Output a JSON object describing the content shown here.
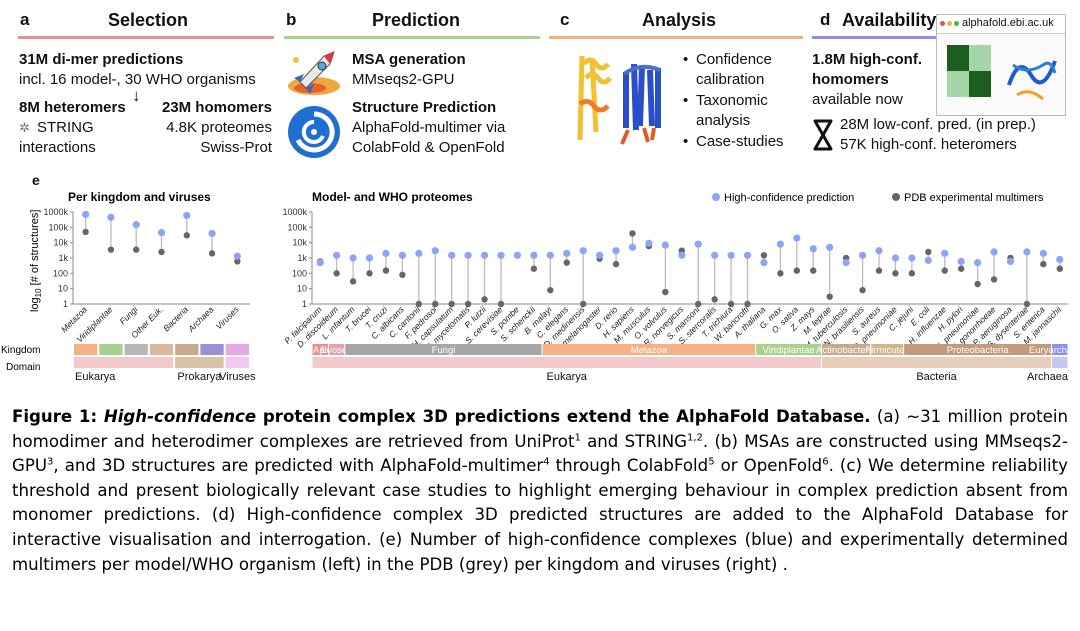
{
  "colors": {
    "selection": "#ec8f95",
    "prediction": "#a9d18e",
    "analysis": "#f4b183",
    "availability": "#8e8ef0",
    "high_conf": "#8ea3f5",
    "pdb": "#666666",
    "stem": "#bdbdbd"
  },
  "panels": {
    "a": {
      "letter": "a",
      "title": "Selection",
      "line1": "31M di-mer predictions",
      "line2": "incl. 16 model-, 30 WHO organisms",
      "hetero_title": "8M heteromers",
      "hetero_sub1": "STRING",
      "hetero_sub2": "interactions",
      "homo_title": "23M homomers",
      "homo_sub1": "4.8K proteomes",
      "homo_sub2": "Swiss-Prot",
      "arrow": "↓"
    },
    "b": {
      "letter": "b",
      "title": "Prediction",
      "msa_title": "MSA generation",
      "msa_sub": "MMseqs2-GPU",
      "sp_title": "Structure Prediction",
      "sp_sub1": "AlphaFold-multimer via",
      "sp_sub2": "ColabFold & OpenFold"
    },
    "c": {
      "letter": "c",
      "title": "Analysis",
      "bullets": [
        "Confidence",
        "calibration",
        "Taxonomic",
        "analysis",
        "Case-studies"
      ]
    },
    "d": {
      "letter": "d",
      "title": "Availability",
      "line1": "1.8M high-conf.",
      "line2": "homomers",
      "line3": "available now",
      "low": "28M low-conf. pred. (in prep.)",
      "hetero": "57K high-conf. heteromers",
      "url": "alphafold.ebi.ac.uk"
    }
  },
  "panel_e": {
    "letter": "e",
    "left_title": "Per kingdom and viruses",
    "right_title": "Model- and WHO proteomes",
    "legend_high": "High-confidence prediction",
    "legend_pdb": "PDB experimental multimers",
    "row_kingdom": "Kingdom",
    "row_domain": "Domain"
  },
  "chart_data": [
    {
      "type": "scatter",
      "title": "Per kingdom and viruses",
      "ylabel": "log10 [# of structures]",
      "yscale": "log",
      "ylim": [
        1,
        1000000
      ],
      "yticks": [
        "1",
        "10",
        "100",
        "1k",
        "10k",
        "100k",
        "1000k"
      ],
      "categories": [
        "Metazoa",
        "Viridiplantae",
        "Fungi",
        "Other Euk.",
        "Bacteria",
        "Archaea",
        "Viruses"
      ],
      "series": [
        {
          "name": "High-confidence prediction",
          "values": [
            700000,
            450000,
            150000,
            45000,
            600000,
            40000,
            1300
          ]
        },
        {
          "name": "PDB experimental multimers",
          "values": [
            50000,
            3500,
            3500,
            2500,
            30000,
            2000,
            600
          ]
        }
      ],
      "domains": [
        {
          "name": "Eukarya",
          "span": 4
        },
        {
          "name": "Prokarya",
          "span": 2
        },
        {
          "name": "Viruses",
          "span": 1
        }
      ]
    },
    {
      "type": "scatter",
      "title": "Model- and WHO proteomes",
      "yscale": "log",
      "ylim": [
        1,
        1000000
      ],
      "yticks": [
        "1",
        "10",
        "100",
        "1k",
        "10k",
        "100k",
        "1000k"
      ],
      "categories": [
        "P. falciparum",
        "D. discoideum",
        "L. infantum",
        "T. brucei",
        "T. cruzi",
        "C. albicans",
        "C. cantonii",
        "F. pedrosoi",
        "H. capsulatum",
        "M. mycetomatis",
        "P. lutzii",
        "S. cerevisiae",
        "S. pombe",
        "S. schenckii",
        "B. malayi",
        "C. elegans",
        "D. medinensis",
        "D. melanogaster",
        "D. rerio",
        "H. sapiens",
        "M. musculus",
        "O. volvulus",
        "R. norvegicus",
        "S. mansoni",
        "S. stercoralis",
        "T. trichiura",
        "W. bancrofti",
        "A. thaliana",
        "G. max",
        "O. sativa",
        "Z. mays",
        "M. leprae",
        "M. tuberculosis",
        "N. brasiliensis",
        "S. aureus",
        "S. pneumoniae",
        "C. jejuni",
        "E. coli",
        "H. influenzae",
        "H. pylori",
        "K. pneumoniae",
        "N. gonorrhoeae",
        "P. aeruginosa",
        "S. dysenteriae",
        "S. enterica",
        "M. jannaschii"
      ],
      "series": [
        {
          "name": "High-confidence prediction",
          "values": [
            500,
            1500,
            1000,
            1000,
            2000,
            1500,
            2000,
            3000,
            1500,
            1500,
            1500,
            1500,
            1500,
            1500,
            1500,
            2000,
            3000,
            1500,
            3000,
            5000,
            9000,
            7000,
            1500,
            8000,
            1500,
            1500,
            1500,
            500,
            8000,
            20000,
            4000,
            5000,
            500,
            1500,
            3000,
            1000,
            1000,
            700,
            2000,
            600,
            500,
            2500,
            600,
            2500,
            2000,
            800
          ]
        },
        {
          "name": "PDB experimental multimers",
          "values": [
            600,
            100,
            30,
            100,
            150,
            80,
            1,
            1,
            1,
            1,
            2,
            1,
            1500,
            200,
            8,
            500,
            1,
            900,
            400,
            40000,
            6000,
            6,
            3000,
            1,
            2,
            1,
            1,
            1500,
            100,
            150,
            150,
            3,
            1000,
            8,
            150,
            100,
            100,
            2500,
            150,
            200,
            20,
            40,
            1000,
            1,
            400,
            200
          ]
        }
      ],
      "kingdoms": [
        "Apicomplexa",
        "Evosea",
        "Fungi",
        "Metazoa",
        "Viridiplantae",
        "Actinobacteria",
        "Firmicutes",
        "Proteobacteria",
        "Euryarchaeota"
      ],
      "domains": [
        "Eukarya",
        "Bacteria",
        "Archaea"
      ]
    }
  ],
  "caption": {
    "fig_label": "Figure 1:",
    "fig_title_em": "High-confidence",
    "fig_title_rest": "protein complex 3D predictions extend the AlphaFold Database.",
    "t1": "(a) ~31 million protein homodimer and heterodimer complexes are retrieved from UniProt",
    "sup1": "1",
    "t2": "and STRING",
    "sup2": "1,2",
    "t3": ". (b) MSAs are constructed using MMseqs2-GPU",
    "sup3": "3",
    "t4": ", and 3D structures are predicted with AlphaFold-multimer",
    "sup4": "4",
    "t5": "through ColabFold",
    "sup5": "5",
    "t6": "or OpenFold",
    "sup6": "6",
    "t7": ". (c) We determine reliability threshold and present biologically relevant case studies to highlight emerging behaviour in complex prediction absent from monomer predictions. (d) High-confidence complex 3D predicted structures are added to the AlphaFold Database for interactive visualisation and interrogation. (e) Number of high-confidence complexes (blue) and experimentally determined multimers per model/WHO organism (left) in the PDB (grey) per kingdom and viruses (right) ."
  }
}
